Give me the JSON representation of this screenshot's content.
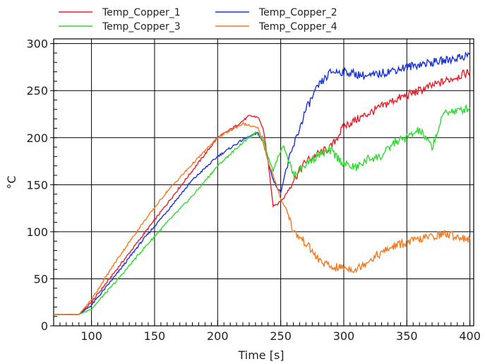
{
  "chart_data": {
    "type": "line",
    "title": "",
    "xlabel": "Time  [s]",
    "ylabel": "°C",
    "xlim": [
      70,
      403
    ],
    "ylim": [
      0,
      305
    ],
    "xticks": [
      100,
      150,
      200,
      250,
      300,
      350,
      400
    ],
    "yticks": [
      0,
      50,
      100,
      150,
      200,
      250,
      300
    ],
    "grid": true,
    "legend_position": "top",
    "series": [
      {
        "name": "Temp_Copper_1",
        "color": "#e8202a",
        "x": [
          70,
          90,
          100,
          120,
          140,
          160,
          180,
          200,
          215,
          225,
          232,
          236,
          240,
          244,
          248,
          252,
          255,
          260,
          270,
          280,
          290,
          300,
          320,
          340,
          360,
          380,
          400
        ],
        "y": [
          12,
          12,
          25,
          60,
          95,
          130,
          165,
          200,
          213,
          223,
          222,
          210,
          175,
          128,
          130,
          135,
          142,
          155,
          175,
          183,
          190,
          212,
          226,
          240,
          250,
          260,
          270
        ]
      },
      {
        "name": "Temp_Copper_2",
        "color": "#1a33d6",
        "x": [
          70,
          90,
          100,
          120,
          140,
          160,
          180,
          200,
          220,
          232,
          236,
          240,
          244,
          248,
          250,
          254,
          260,
          270,
          280,
          290,
          300,
          320,
          340,
          360,
          380,
          400
        ],
        "y": [
          12,
          12,
          22,
          55,
          90,
          122,
          155,
          180,
          198,
          205,
          195,
          175,
          155,
          145,
          142,
          165,
          190,
          230,
          255,
          270,
          270,
          265,
          272,
          278,
          282,
          288
        ]
      },
      {
        "name": "Temp_Copper_3",
        "color": "#2fdc2f",
        "x": [
          70,
          90,
          100,
          120,
          140,
          160,
          180,
          200,
          220,
          230,
          236,
          240,
          244,
          248,
          252,
          256,
          260,
          270,
          280,
          290,
          300,
          310,
          320,
          330,
          340,
          350,
          360,
          370,
          380,
          390,
          400
        ],
        "y": [
          12,
          12,
          18,
          48,
          80,
          110,
          138,
          170,
          195,
          205,
          200,
          180,
          165,
          180,
          192,
          178,
          160,
          172,
          182,
          186,
          172,
          168,
          178,
          180,
          195,
          200,
          208,
          190,
          228,
          228,
          232
        ]
      },
      {
        "name": "Temp_Copper_4",
        "color": "#f27a23",
        "x": [
          70,
          90,
          100,
          120,
          140,
          160,
          180,
          200,
          220,
          232,
          236,
          240,
          244,
          250,
          256,
          260,
          270,
          280,
          290,
          300,
          310,
          320,
          340,
          360,
          380,
          400
        ],
        "y": [
          12,
          12,
          28,
          70,
          108,
          143,
          172,
          200,
          215,
          210,
          195,
          175,
          160,
          135,
          120,
          100,
          88,
          70,
          62,
          62,
          60,
          70,
          85,
          92,
          98,
          92
        ]
      }
    ]
  }
}
